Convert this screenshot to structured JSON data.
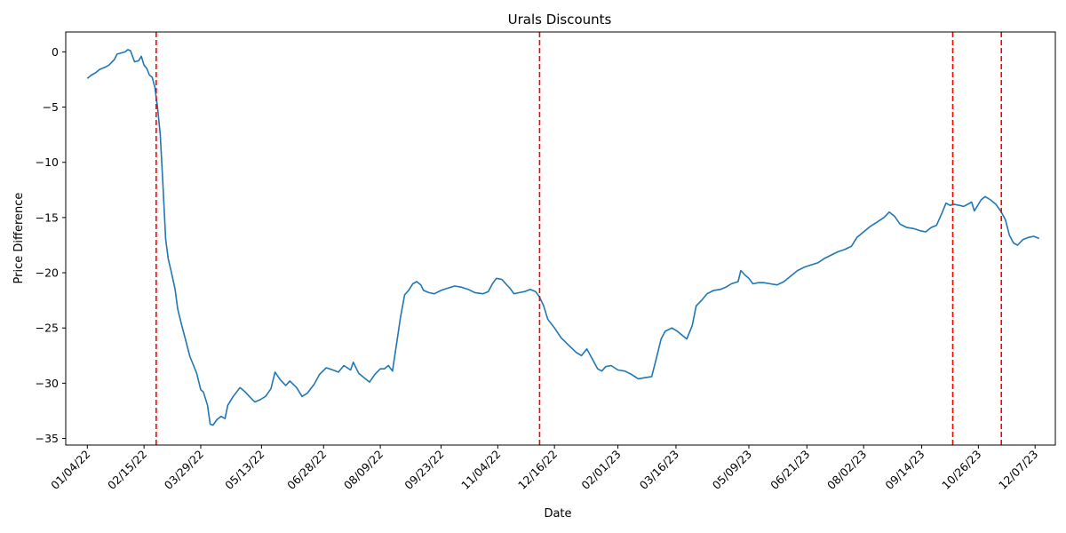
{
  "chart_data": {
    "type": "line",
    "title": "Urals Discounts",
    "xlabel": "Date",
    "ylabel": "Price Difference",
    "x_tick_labels": [
      "01/04/22",
      "02/15/22",
      "03/29/22",
      "05/13/22",
      "06/28/22",
      "08/09/22",
      "09/23/22",
      "11/04/22",
      "12/16/22",
      "02/01/23",
      "03/16/23",
      "05/09/23",
      "06/21/23",
      "08/02/23",
      "09/14/23",
      "10/26/23",
      "12/07/23"
    ],
    "x_ticks": [
      "2022-01-04",
      "2022-02-15",
      "2022-03-29",
      "2022-05-13",
      "2022-06-28",
      "2022-08-09",
      "2022-09-23",
      "2022-11-04",
      "2022-12-16",
      "2023-02-01",
      "2023-03-16",
      "2023-05-09",
      "2023-06-21",
      "2023-08-02",
      "2023-09-14",
      "2023-10-26",
      "2023-12-07"
    ],
    "y_ticks": [
      0,
      -5,
      -10,
      -15,
      -20,
      -25,
      -30,
      -35
    ],
    "y_tick_labels": [
      "0",
      "−5",
      "−10",
      "−15",
      "−20",
      "−25",
      "−30",
      "−35"
    ],
    "xlim": [
      "2021-12-19",
      "2023-12-22"
    ],
    "ylim": [
      -35.6,
      1.8
    ],
    "grid": false,
    "line_color": "#1f77b4",
    "vline_color": "#ff0000",
    "vlines": [
      "2022-02-24",
      "2022-12-05",
      "2023-10-07",
      "2023-11-12"
    ],
    "series": [
      {
        "points": [
          [
            "2022-01-04",
            -2.4
          ],
          [
            "2022-01-07",
            -2.1
          ],
          [
            "2022-01-10",
            -1.9
          ],
          [
            "2022-01-13",
            -1.6
          ],
          [
            "2022-01-17",
            -1.4
          ],
          [
            "2022-01-20",
            -1.2
          ],
          [
            "2022-01-24",
            -0.7
          ],
          [
            "2022-01-26",
            -0.2
          ],
          [
            "2022-01-29",
            -0.1
          ],
          [
            "2022-02-01",
            0.0
          ],
          [
            "2022-02-03",
            0.2
          ],
          [
            "2022-02-05",
            0.1
          ],
          [
            "2022-02-08",
            -0.9
          ],
          [
            "2022-02-11",
            -0.8
          ],
          [
            "2022-02-13",
            -0.4
          ],
          [
            "2022-02-15",
            -1.2
          ],
          [
            "2022-02-17",
            -1.5
          ],
          [
            "2022-02-19",
            -2.1
          ],
          [
            "2022-02-21",
            -2.3
          ],
          [
            "2022-02-23",
            -3.2
          ],
          [
            "2022-02-25",
            -5.0
          ],
          [
            "2022-02-27",
            -7.5
          ],
          [
            "2022-03-01",
            -12.0
          ],
          [
            "2022-03-03",
            -17.0
          ],
          [
            "2022-03-05",
            -18.8
          ],
          [
            "2022-03-07",
            -19.8
          ],
          [
            "2022-03-10",
            -21.5
          ],
          [
            "2022-03-12",
            -23.3
          ],
          [
            "2022-03-15",
            -24.8
          ],
          [
            "2022-03-18",
            -26.2
          ],
          [
            "2022-03-21",
            -27.6
          ],
          [
            "2022-03-23",
            -28.2
          ],
          [
            "2022-03-26",
            -29.1
          ],
          [
            "2022-03-29",
            -30.6
          ],
          [
            "2022-03-31",
            -30.8
          ],
          [
            "2022-04-03",
            -32.0
          ],
          [
            "2022-04-05",
            -33.7
          ],
          [
            "2022-04-07",
            -33.8
          ],
          [
            "2022-04-10",
            -33.3
          ],
          [
            "2022-04-13",
            -33.0
          ],
          [
            "2022-04-16",
            -33.2
          ],
          [
            "2022-04-18",
            -32.0
          ],
          [
            "2022-04-22",
            -31.2
          ],
          [
            "2022-04-27",
            -30.4
          ],
          [
            "2022-05-01",
            -30.8
          ],
          [
            "2022-05-04",
            -31.2
          ],
          [
            "2022-05-08",
            -31.7
          ],
          [
            "2022-05-12",
            -31.5
          ],
          [
            "2022-05-16",
            -31.2
          ],
          [
            "2022-05-20",
            -30.5
          ],
          [
            "2022-05-23",
            -29.0
          ],
          [
            "2022-05-27",
            -29.7
          ],
          [
            "2022-05-31",
            -30.2
          ],
          [
            "2022-06-03",
            -29.8
          ],
          [
            "2022-06-08",
            -30.4
          ],
          [
            "2022-06-12",
            -31.2
          ],
          [
            "2022-06-16",
            -30.9
          ],
          [
            "2022-06-21",
            -30.1
          ],
          [
            "2022-06-25",
            -29.2
          ],
          [
            "2022-06-30",
            -28.6
          ],
          [
            "2022-07-05",
            -28.8
          ],
          [
            "2022-07-09",
            -29.0
          ],
          [
            "2022-07-13",
            -28.4
          ],
          [
            "2022-07-18",
            -28.8
          ],
          [
            "2022-07-20",
            -28.1
          ],
          [
            "2022-07-24",
            -29.1
          ],
          [
            "2022-07-28",
            -29.5
          ],
          [
            "2022-08-01",
            -29.9
          ],
          [
            "2022-08-05",
            -29.2
          ],
          [
            "2022-08-09",
            -28.7
          ],
          [
            "2022-08-12",
            -28.7
          ],
          [
            "2022-08-15",
            -28.4
          ],
          [
            "2022-08-18",
            -28.9
          ],
          [
            "2022-08-21",
            -26.5
          ],
          [
            "2022-08-24",
            -24.0
          ],
          [
            "2022-08-27",
            -22.0
          ],
          [
            "2022-08-30",
            -21.6
          ],
          [
            "2022-09-02",
            -21.0
          ],
          [
            "2022-09-05",
            -20.8
          ],
          [
            "2022-09-08",
            -21.1
          ],
          [
            "2022-09-10",
            -21.6
          ],
          [
            "2022-09-14",
            -21.8
          ],
          [
            "2022-09-18",
            -21.9
          ],
          [
            "2022-09-23",
            -21.6
          ],
          [
            "2022-09-28",
            -21.4
          ],
          [
            "2022-10-03",
            -21.2
          ],
          [
            "2022-10-08",
            -21.3
          ],
          [
            "2022-10-13",
            -21.5
          ],
          [
            "2022-10-18",
            -21.8
          ],
          [
            "2022-10-24",
            -21.9
          ],
          [
            "2022-10-28",
            -21.7
          ],
          [
            "2022-10-31",
            -21.0
          ],
          [
            "2022-11-03",
            -20.5
          ],
          [
            "2022-11-07",
            -20.6
          ],
          [
            "2022-11-10",
            -21.0
          ],
          [
            "2022-11-13",
            -21.4
          ],
          [
            "2022-11-16",
            -21.9
          ],
          [
            "2022-11-20",
            -21.8
          ],
          [
            "2022-11-24",
            -21.7
          ],
          [
            "2022-11-28",
            -21.5
          ],
          [
            "2022-12-02",
            -21.7
          ],
          [
            "2022-12-05",
            -22.2
          ],
          [
            "2022-12-08",
            -23.0
          ],
          [
            "2022-12-11",
            -24.2
          ],
          [
            "2022-12-16",
            -25.0
          ],
          [
            "2022-12-21",
            -25.9
          ],
          [
            "2022-12-26",
            -26.5
          ],
          [
            "2023-01-01",
            -27.2
          ],
          [
            "2023-01-05",
            -27.5
          ],
          [
            "2023-01-09",
            -26.9
          ],
          [
            "2023-01-13",
            -27.8
          ],
          [
            "2023-01-17",
            -28.7
          ],
          [
            "2023-01-20",
            -28.9
          ],
          [
            "2023-01-23",
            -28.5
          ],
          [
            "2023-01-27",
            -28.4
          ],
          [
            "2023-02-01",
            -28.8
          ],
          [
            "2023-02-06",
            -28.9
          ],
          [
            "2023-02-11",
            -29.2
          ],
          [
            "2023-02-16",
            -29.6
          ],
          [
            "2023-02-21",
            -29.5
          ],
          [
            "2023-02-26",
            -29.4
          ],
          [
            "2023-03-01",
            -28.0
          ],
          [
            "2023-03-05",
            -26.0
          ],
          [
            "2023-03-08",
            -25.3
          ],
          [
            "2023-03-13",
            -25.0
          ],
          [
            "2023-03-17",
            -25.3
          ],
          [
            "2023-03-21",
            -25.7
          ],
          [
            "2023-03-24",
            -26.0
          ],
          [
            "2023-03-28",
            -24.8
          ],
          [
            "2023-03-31",
            -23.0
          ],
          [
            "2023-04-04",
            -22.5
          ],
          [
            "2023-04-08",
            -21.9
          ],
          [
            "2023-04-13",
            -21.6
          ],
          [
            "2023-04-18",
            -21.5
          ],
          [
            "2023-04-22",
            -21.3
          ],
          [
            "2023-04-26",
            -21.0
          ],
          [
            "2023-05-01",
            -20.8
          ],
          [
            "2023-05-03",
            -19.8
          ],
          [
            "2023-05-06",
            -20.2
          ],
          [
            "2023-05-09",
            -20.5
          ],
          [
            "2023-05-12",
            -21.0
          ],
          [
            "2023-05-16",
            -20.9
          ],
          [
            "2023-05-20",
            -20.9
          ],
          [
            "2023-05-25",
            -21.0
          ],
          [
            "2023-05-30",
            -21.1
          ],
          [
            "2023-06-04",
            -20.8
          ],
          [
            "2023-06-09",
            -20.3
          ],
          [
            "2023-06-14",
            -19.8
          ],
          [
            "2023-06-19",
            -19.5
          ],
          [
            "2023-06-24",
            -19.3
          ],
          [
            "2023-06-29",
            -19.1
          ],
          [
            "2023-07-04",
            -18.7
          ],
          [
            "2023-07-09",
            -18.4
          ],
          [
            "2023-07-14",
            -18.1
          ],
          [
            "2023-07-19",
            -17.9
          ],
          [
            "2023-07-24",
            -17.6
          ],
          [
            "2023-07-28",
            -16.8
          ],
          [
            "2023-08-02",
            -16.3
          ],
          [
            "2023-08-07",
            -15.8
          ],
          [
            "2023-08-12",
            -15.4
          ],
          [
            "2023-08-17",
            -15.0
          ],
          [
            "2023-08-21",
            -14.5
          ],
          [
            "2023-08-25",
            -14.9
          ],
          [
            "2023-08-29",
            -15.6
          ],
          [
            "2023-09-03",
            -15.9
          ],
          [
            "2023-09-08",
            -16.0
          ],
          [
            "2023-09-13",
            -16.2
          ],
          [
            "2023-09-17",
            -16.3
          ],
          [
            "2023-09-21",
            -15.9
          ],
          [
            "2023-09-25",
            -15.7
          ],
          [
            "2023-09-29",
            -14.6
          ],
          [
            "2023-10-02",
            -13.7
          ],
          [
            "2023-10-05",
            -13.9
          ],
          [
            "2023-10-08",
            -13.8
          ],
          [
            "2023-10-12",
            -13.9
          ],
          [
            "2023-10-15",
            -14.0
          ],
          [
            "2023-10-18",
            -13.8
          ],
          [
            "2023-10-21",
            -13.6
          ],
          [
            "2023-10-23",
            -14.4
          ],
          [
            "2023-10-25",
            -14.0
          ],
          [
            "2023-10-28",
            -13.4
          ],
          [
            "2023-10-31",
            -13.1
          ],
          [
            "2023-11-04",
            -13.4
          ],
          [
            "2023-11-08",
            -13.8
          ],
          [
            "2023-11-12",
            -14.5
          ],
          [
            "2023-11-15",
            -15.2
          ],
          [
            "2023-11-18",
            -16.6
          ],
          [
            "2023-11-21",
            -17.3
          ],
          [
            "2023-11-24",
            -17.5
          ],
          [
            "2023-11-28",
            -17.0
          ],
          [
            "2023-12-02",
            -16.8
          ],
          [
            "2023-12-06",
            -16.7
          ],
          [
            "2023-12-10",
            -16.9
          ]
        ]
      }
    ]
  }
}
